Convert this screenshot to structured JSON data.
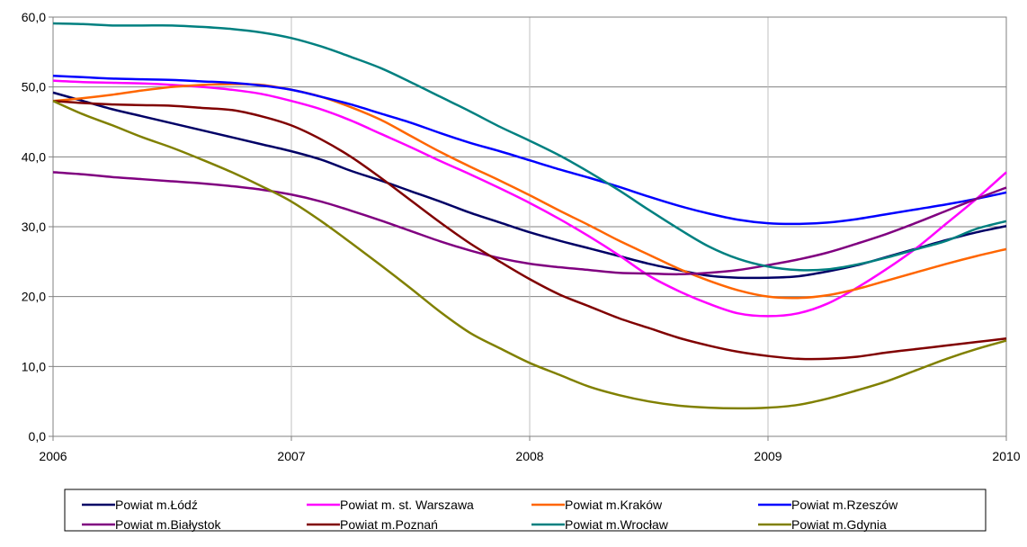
{
  "chart_data": {
    "type": "line",
    "x": [
      2006,
      2006.125,
      2006.25,
      2006.375,
      2006.5,
      2006.625,
      2006.75,
      2006.875,
      2007,
      2007.125,
      2007.25,
      2007.375,
      2007.5,
      2007.625,
      2007.75,
      2007.875,
      2008,
      2008.125,
      2008.25,
      2008.375,
      2008.5,
      2008.625,
      2008.75,
      2008.875,
      2009,
      2009.125,
      2009.25,
      2009.375,
      2009.5,
      2009.625,
      2009.75,
      2009.875,
      2010
    ],
    "xlim": [
      2006,
      2010
    ],
    "ylim": [
      0,
      60
    ],
    "x_ticks": [
      "2006",
      "2007",
      "2008",
      "2009",
      "2010"
    ],
    "y_ticks": [
      "0,0",
      "10,0",
      "20,0",
      "30,0",
      "40,0",
      "50,0",
      "60,0"
    ],
    "grid": true,
    "legend_position": "bottom",
    "series": [
      {
        "name": "Powiat m.Łódź",
        "color": "#000066",
        "values": [
          49.2,
          48.0,
          46.8,
          45.8,
          44.8,
          43.8,
          42.8,
          41.8,
          40.8,
          39.6,
          38.0,
          36.6,
          35.1,
          33.6,
          32.0,
          30.6,
          29.2,
          28.0,
          26.9,
          25.8,
          24.7,
          23.8,
          23.0,
          22.7,
          22.7,
          22.9,
          23.6,
          24.5,
          25.7,
          26.9,
          28.1,
          29.2,
          30.1
        ]
      },
      {
        "name": "Powiat m. st. Warszawa",
        "color": "#ff00ff",
        "values": [
          50.9,
          50.7,
          50.6,
          50.5,
          50.3,
          50.0,
          49.6,
          49.0,
          48.0,
          46.8,
          45.2,
          43.3,
          41.4,
          39.4,
          37.5,
          35.5,
          33.4,
          31.1,
          28.6,
          25.9,
          23.0,
          20.8,
          19.0,
          17.6,
          17.2,
          17.6,
          19.0,
          21.3,
          24.0,
          27.0,
          30.5,
          34.0,
          37.8
        ]
      },
      {
        "name": "Powiat m.Kraków",
        "color": "#ff6600",
        "values": [
          48.0,
          48.4,
          48.9,
          49.5,
          50.0,
          50.3,
          50.4,
          50.3,
          49.6,
          48.6,
          47.1,
          45.3,
          43.0,
          40.7,
          38.6,
          36.6,
          34.5,
          32.3,
          30.2,
          28.0,
          26.0,
          24.0,
          22.3,
          20.9,
          20.0,
          19.8,
          20.2,
          21.1,
          22.3,
          23.5,
          24.7,
          25.8,
          26.8
        ]
      },
      {
        "name": "Powiat m.Rzeszów",
        "color": "#0000ff",
        "values": [
          51.6,
          51.4,
          51.2,
          51.1,
          51.0,
          50.8,
          50.6,
          50.2,
          49.6,
          48.6,
          47.5,
          46.2,
          44.9,
          43.4,
          42.0,
          40.8,
          39.5,
          38.2,
          37.0,
          35.7,
          34.3,
          33.0,
          31.9,
          31.0,
          30.5,
          30.4,
          30.6,
          31.1,
          31.8,
          32.5,
          33.2,
          34.0,
          34.9
        ]
      },
      {
        "name": "Powiat m.Białystok",
        "color": "#800080",
        "values": [
          37.8,
          37.5,
          37.1,
          36.8,
          36.5,
          36.2,
          35.8,
          35.3,
          34.6,
          33.6,
          32.3,
          30.9,
          29.4,
          27.9,
          26.6,
          25.5,
          24.7,
          24.2,
          23.8,
          23.4,
          23.3,
          23.2,
          23.4,
          23.8,
          24.5,
          25.3,
          26.3,
          27.6,
          29.0,
          30.6,
          32.3,
          34.0,
          35.6
        ]
      },
      {
        "name": "Powiat m.Poznań",
        "color": "#800000",
        "values": [
          48.0,
          47.7,
          47.5,
          47.4,
          47.3,
          47.0,
          46.7,
          45.8,
          44.5,
          42.5,
          40.0,
          37.0,
          33.8,
          30.6,
          27.6,
          25.0,
          22.5,
          20.3,
          18.6,
          16.9,
          15.5,
          14.1,
          13.0,
          12.1,
          11.5,
          11.1,
          11.1,
          11.4,
          12.0,
          12.5,
          13.0,
          13.5,
          14.0
        ]
      },
      {
        "name": "Powiat m.Wrocław",
        "color": "#008080",
        "values": [
          59.1,
          59.0,
          58.8,
          58.8,
          58.8,
          58.6,
          58.3,
          57.8,
          57.0,
          55.8,
          54.3,
          52.7,
          50.7,
          48.6,
          46.5,
          44.3,
          42.3,
          40.2,
          37.8,
          35.2,
          32.4,
          29.7,
          27.2,
          25.4,
          24.3,
          23.8,
          23.9,
          24.6,
          25.6,
          26.8,
          28.0,
          29.7,
          30.8
        ]
      },
      {
        "name": "Powiat m.Gdynia",
        "color": "#808000",
        "values": [
          48.0,
          46.1,
          44.5,
          42.8,
          41.3,
          39.6,
          37.8,
          35.8,
          33.6,
          30.8,
          27.7,
          24.5,
          21.2,
          17.8,
          14.8,
          12.6,
          10.5,
          8.8,
          7.1,
          5.9,
          5.0,
          4.4,
          4.1,
          4.0,
          4.1,
          4.5,
          5.4,
          6.6,
          7.9,
          9.5,
          11.1,
          12.5,
          13.7
        ]
      }
    ]
  }
}
